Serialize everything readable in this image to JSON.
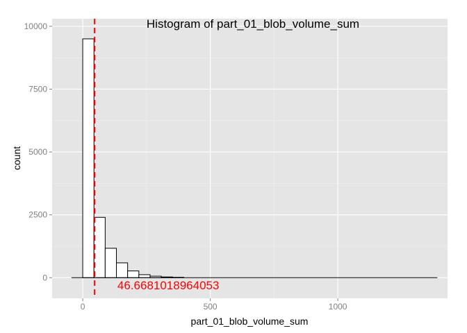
{
  "chart_data": {
    "type": "bar",
    "title": "Histogram of  part_01_blob_volume_sum",
    "xlabel": "part_01_blob_volume_sum",
    "ylabel": "count",
    "bin_width": 44,
    "bins": [
      {
        "x0": -44,
        "x1": 0,
        "count": 0
      },
      {
        "x0": 0,
        "x1": 44,
        "count": 9500
      },
      {
        "x0": 44,
        "x1": 88,
        "count": 2400
      },
      {
        "x0": 88,
        "x1": 132,
        "count": 1170
      },
      {
        "x0": 132,
        "x1": 176,
        "count": 590
      },
      {
        "x0": 176,
        "x1": 220,
        "count": 270
      },
      {
        "x0": 220,
        "x1": 264,
        "count": 120
      },
      {
        "x0": 264,
        "x1": 308,
        "count": 60
      },
      {
        "x0": 308,
        "x1": 352,
        "count": 30
      },
      {
        "x0": 352,
        "x1": 396,
        "count": 15
      },
      {
        "x0": 396,
        "x1": 1390,
        "count": 0
      }
    ],
    "xlim": [
      -120,
      1430
    ],
    "ylim": [
      -820,
      10300
    ],
    "x_ticks": [
      0,
      500,
      1000
    ],
    "x_tick_labels": [
      "0",
      "500",
      "1000"
    ],
    "y_ticks": [
      0,
      2500,
      5000,
      7500,
      10000
    ],
    "y_tick_labels": [
      "0",
      "2500",
      "5000",
      "7500",
      "10000"
    ],
    "x_range": [
      -44,
      1390
    ],
    "mean_line": {
      "value": 46.6681018964053,
      "color": "#ff0000",
      "style": "dashed"
    },
    "annotation": {
      "text": "46.6681018964053",
      "color": "#ff0000",
      "x": 46.6681018964053,
      "y": -300
    },
    "colors": {
      "panel": "#e5e5e5",
      "grid": "#ffffff",
      "bar_fill": "#ffffff",
      "bar_stroke": "#000000"
    },
    "grid": true,
    "legend": "none"
  }
}
